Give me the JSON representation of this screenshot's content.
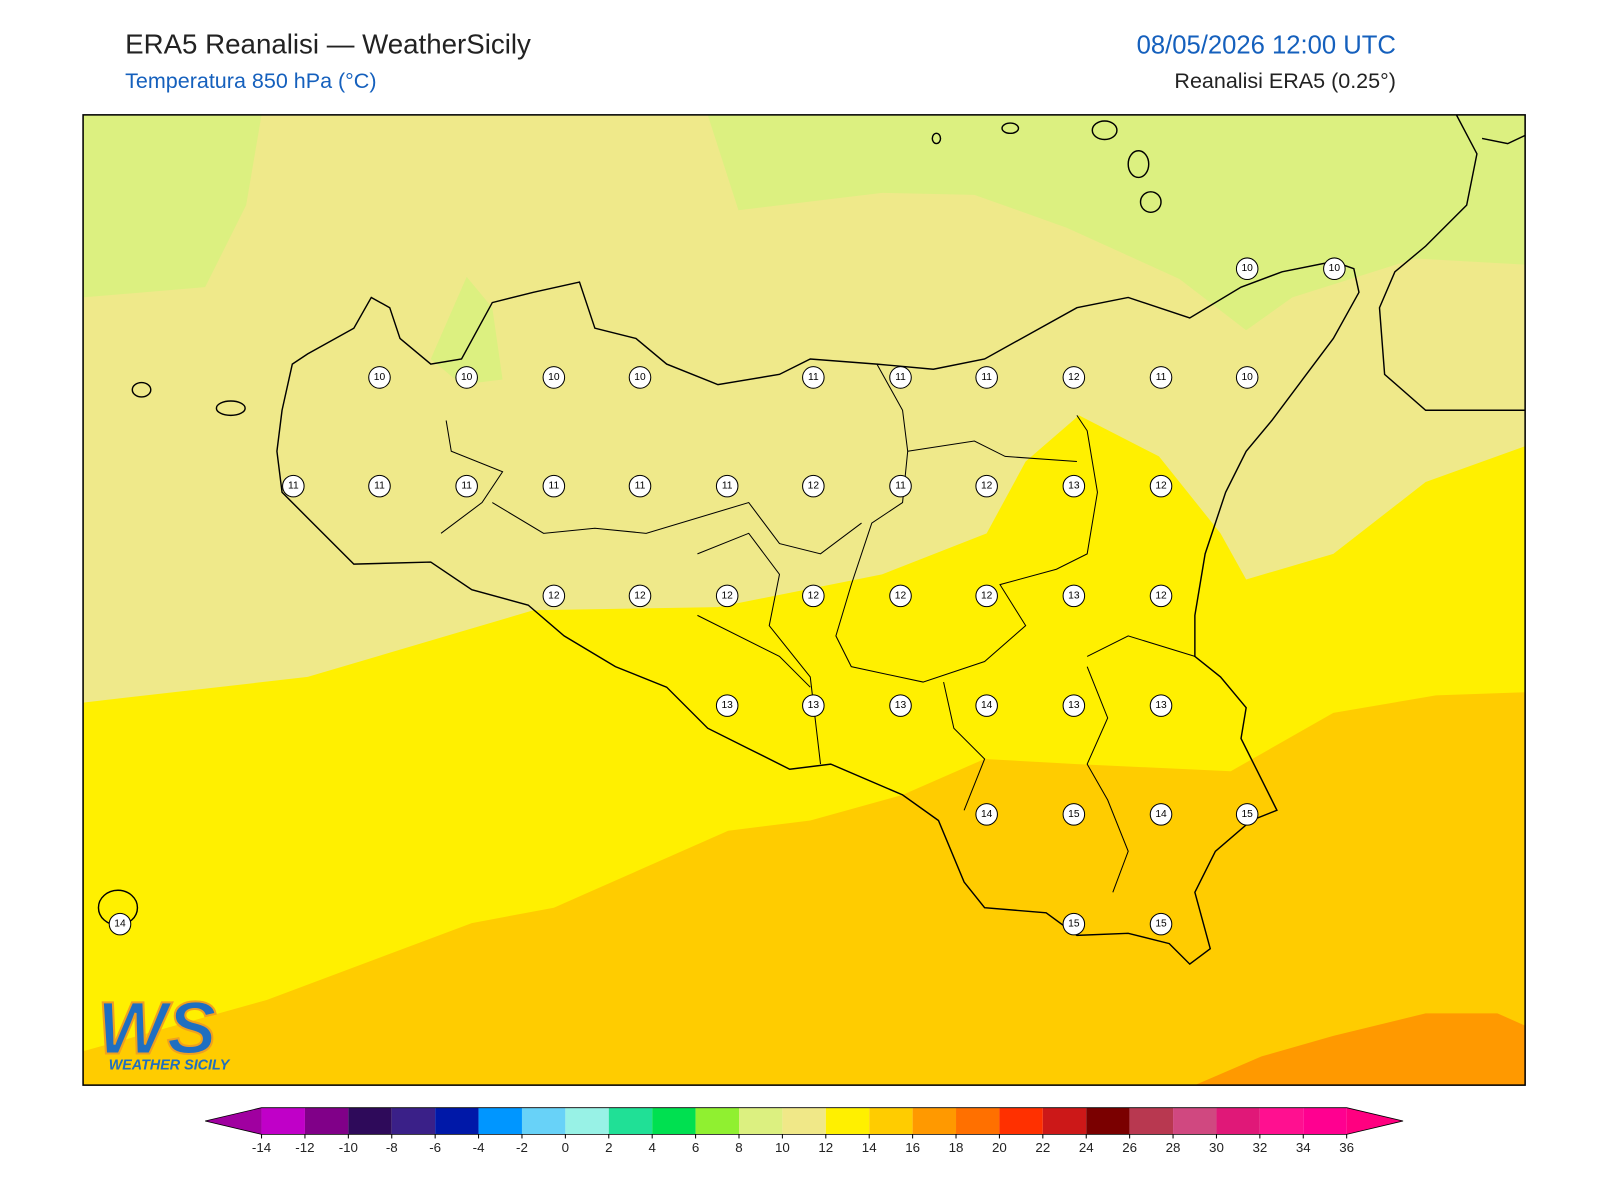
{
  "header": {
    "title": "ERA5 Reanalisi — WeatherSicily",
    "subtitle": "Temperatura 850 hPa (°C)",
    "datetime": "08/05/2026 12:00 UTC",
    "source": "Reanalisi ERA5 (0.25°)"
  },
  "stations": {
    "values": [
      10,
      10,
      10,
      10,
      10,
      10,
      11,
      11,
      11,
      12,
      11,
      10,
      11,
      11,
      11,
      11,
      11,
      11,
      12,
      11,
      12,
      13,
      12,
      12,
      12,
      12,
      12,
      12,
      12,
      13,
      12,
      13,
      13,
      13,
      14,
      13,
      13,
      14,
      15,
      14,
      15,
      14,
      15,
      15
    ]
  },
  "colorbar": {
    "ticks": [
      -14,
      -12,
      -10,
      -8,
      -6,
      -4,
      -2,
      0,
      2,
      4,
      6,
      8,
      10,
      12,
      14,
      16,
      18,
      20,
      22,
      24,
      26,
      28,
      30,
      32,
      34,
      36
    ],
    "colors": [
      "#c000c8",
      "#800088",
      "#2e0a5a",
      "#3a2088",
      "#0018a8",
      "#0096ff",
      "#68d2f8",
      "#98f2e6",
      "#20e096",
      "#00e050",
      "#90f030",
      "#dcf080",
      "#f0e888",
      "#fff000",
      "#ffcc00",
      "#ff9900",
      "#ff7000",
      "#ff3000",
      "#cc1818",
      "#7a0000",
      "#b83850",
      "#d04880",
      "#e01878",
      "#ff1090",
      "#ff0090"
    ],
    "under_color": "#a000a0",
    "over_color": "#ff0080"
  },
  "logo": {
    "letters": "WS",
    "name": "WEATHER SICILY"
  }
}
